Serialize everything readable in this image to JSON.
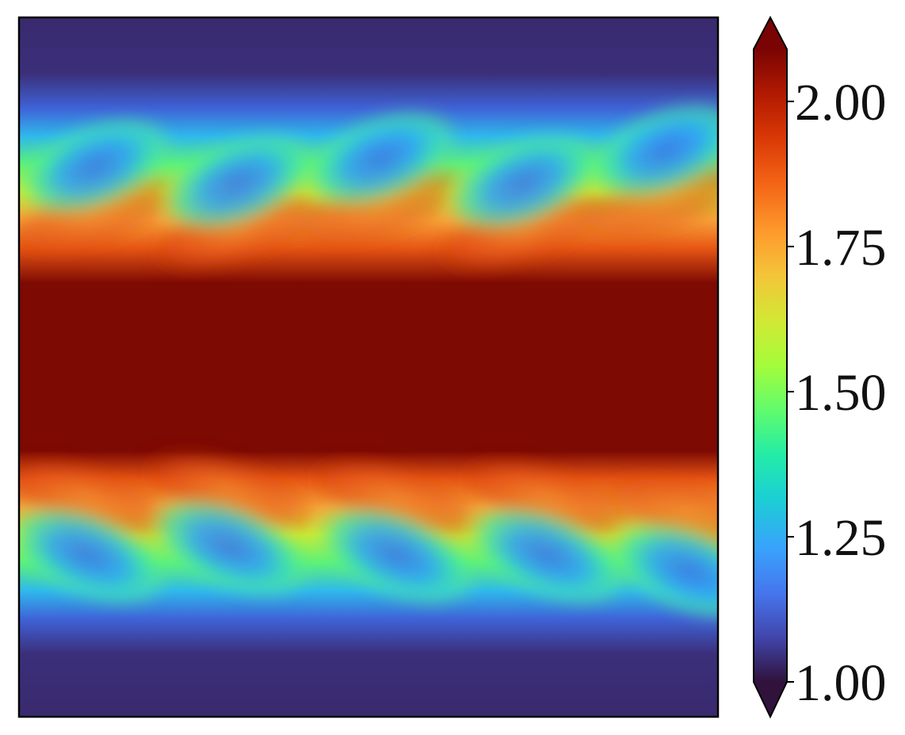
{
  "chart_data": {
    "type": "heatmap",
    "title": "",
    "xlabel": "",
    "ylabel": "",
    "axes_ticks_shown": false,
    "colormap": "turbo",
    "colorbar": {
      "range": [
        1.0,
        2.0
      ],
      "extend": "both",
      "ticks": [
        1.0,
        1.25,
        1.5,
        1.75,
        2.0
      ],
      "tick_labels": [
        "1.00",
        "1.25",
        "1.50",
        "1.75",
        "2.00"
      ],
      "placement": "right"
    },
    "field_description_values": {
      "background_value": 1.07,
      "central_band_value": 2.0,
      "shear_layers": 2
    }
  },
  "colors": {
    "frame": "#000000",
    "low": "#30123b",
    "high": "#7a0403"
  }
}
